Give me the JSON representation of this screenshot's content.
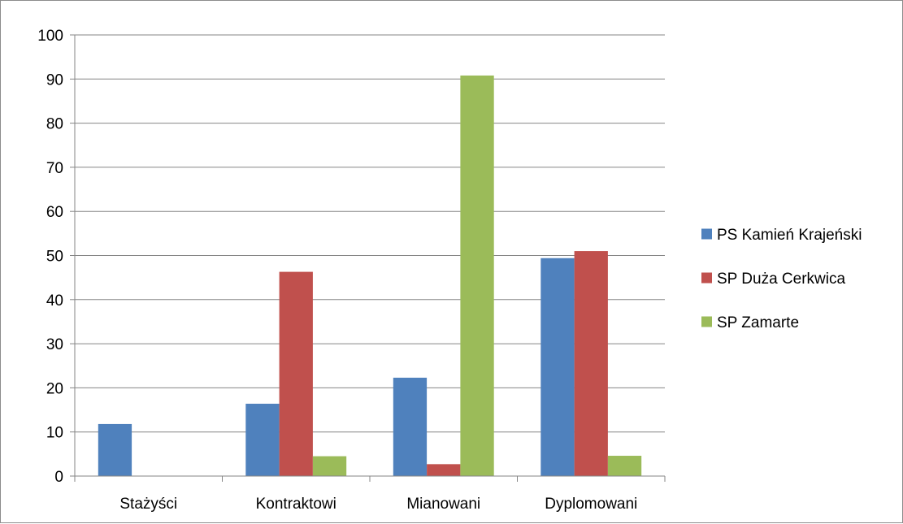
{
  "chart_data": {
    "type": "bar",
    "categories": [
      "Stażyści",
      "Kontraktowi",
      "Mianowani",
      "Dyplomowani"
    ],
    "series": [
      {
        "name": "PS Kamień Krajeński",
        "color": "#4f81bd",
        "values": [
          11.8,
          16.4,
          22.3,
          49.4
        ]
      },
      {
        "name": "SP Duża Cerkwica",
        "color": "#c0504d",
        "values": [
          0,
          46.3,
          2.7,
          51.0
        ]
      },
      {
        "name": "SP Zamarte",
        "color": "#9bbb59",
        "values": [
          0,
          4.5,
          90.8,
          4.6
        ]
      }
    ],
    "ylim": [
      0,
      100
    ],
    "yticks": [
      0,
      10,
      20,
      30,
      40,
      50,
      60,
      70,
      80,
      90,
      100
    ],
    "grid": true,
    "legend_position": "right"
  }
}
